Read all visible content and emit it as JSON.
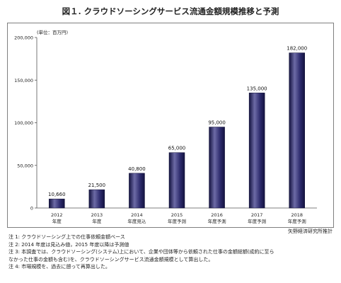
{
  "title": "図１. クラウドソーシングサービス流通金額規模推移と予測",
  "unit_label": "(単位：百万円)",
  "source": "矢野経済研究所推計",
  "notes": [
    "注 1: クラウドソーシング上での仕事依頼金額ベース",
    "注 2: 2014 年度は見込み値，2015 年度以降は予測値",
    "注 3: 本調査では、クラウドソーシング(システム)上において、企業や団体等から依頼された仕事の金額総額(成約に至ら",
    "なかった仕事の金額も含む)を、クラウドソーシングサービス流通金額規模として算出した。",
    "注 4: 市場規模を、過去に遡って再算出した。"
  ],
  "colors": {
    "bar_top": "#6d6ba6",
    "bar_mid": "#2e2c6e",
    "bar_dark": "#13123f"
  },
  "chart_data": {
    "type": "bar",
    "categories": [
      [
        "2012",
        "年度"
      ],
      [
        "2013",
        "年度"
      ],
      [
        "2014",
        "年度見込"
      ],
      [
        "2015",
        "年度予測"
      ],
      [
        "2016",
        "年度予測"
      ],
      [
        "2017",
        "年度予測"
      ],
      [
        "2018",
        "年度予測"
      ]
    ],
    "values": [
      10660,
      21500,
      40800,
      65000,
      95000,
      135000,
      182000
    ],
    "value_labels": [
      "10,660",
      "21,500",
      "40,800",
      "65,000",
      "95,000",
      "135,000",
      "182,000"
    ],
    "yticks": [
      0,
      50000,
      100000,
      150000,
      200000
    ],
    "ytick_labels": [
      "0",
      "50,000",
      "100,000",
      "150,000",
      "200,000"
    ],
    "ylim": [
      0,
      200000
    ],
    "grid": false,
    "ylabel": "(単位：百万円)"
  }
}
